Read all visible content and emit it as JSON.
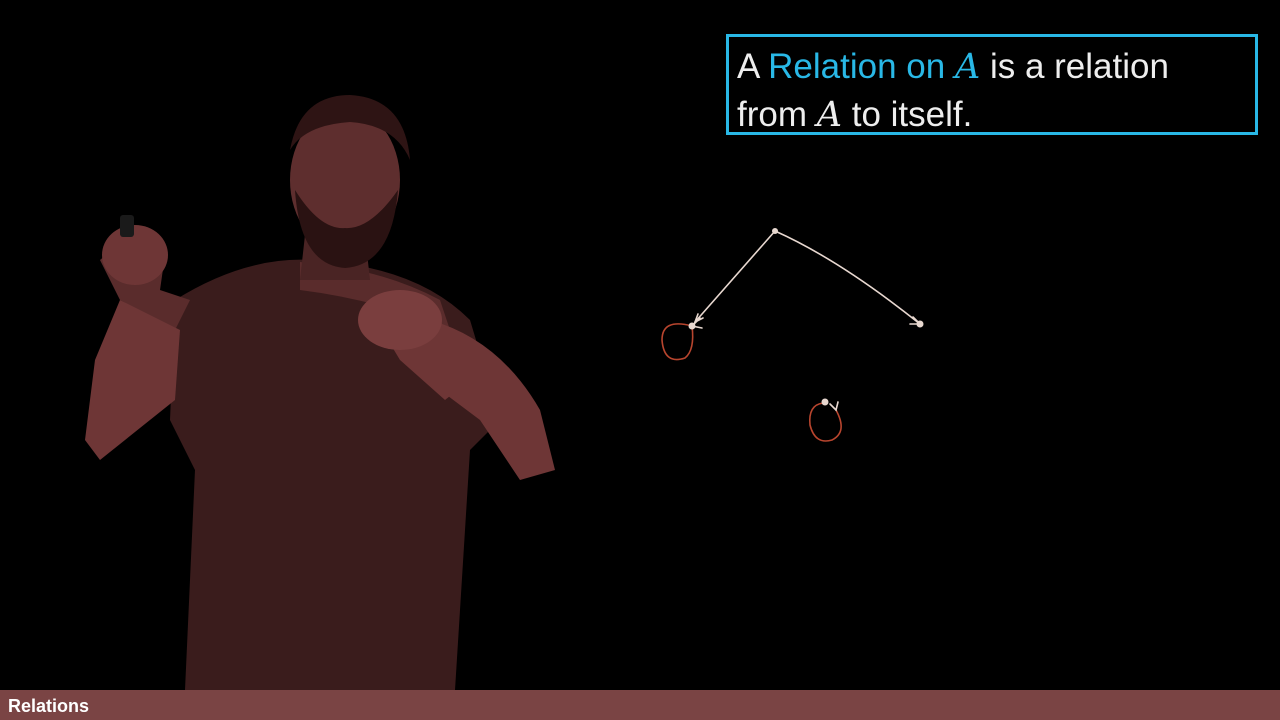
{
  "definition": {
    "line1": {
      "part1": "A ",
      "highlight_text": "Relation on ",
      "highlight_var": "A",
      "part2": " is a relation"
    },
    "line2": {
      "part1": "from ",
      "var": "A",
      "part2": " to itself."
    }
  },
  "footer": {
    "title": "Relations"
  },
  "colors": {
    "accent": "#29b8e6",
    "footer_bg": "#7a4444",
    "presenter_tint": "#6e3636",
    "ink": "#e8d8d0"
  }
}
